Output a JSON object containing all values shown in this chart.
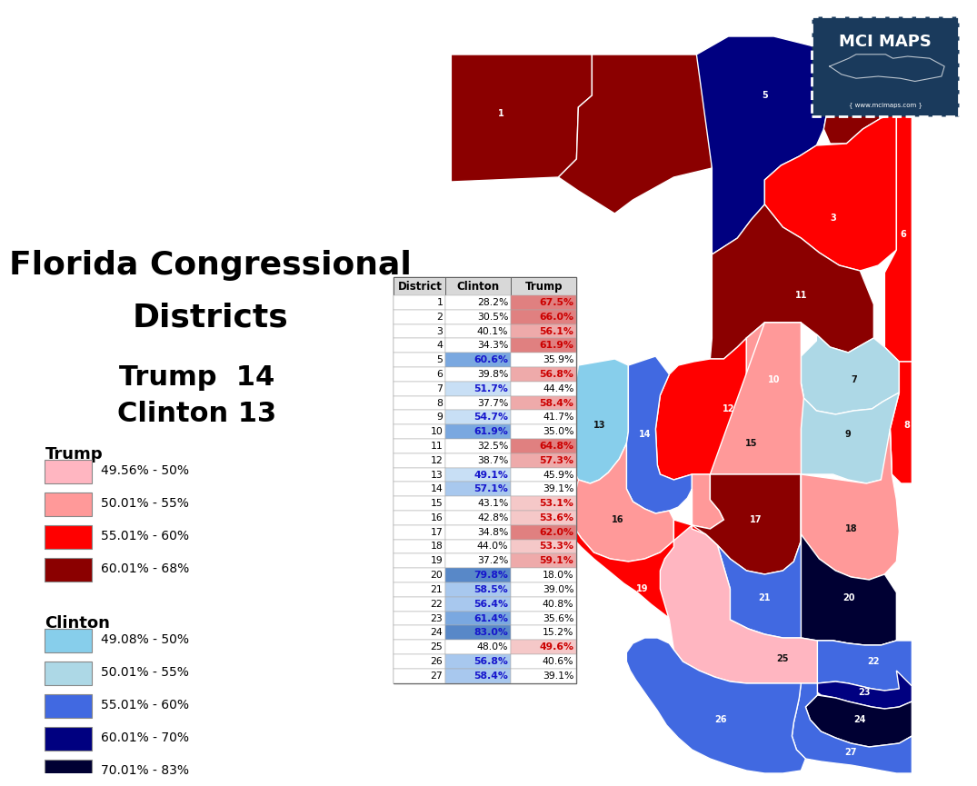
{
  "title_line1": "Florida Congressional",
  "title_line2": "Districts",
  "districts": [
    1,
    2,
    3,
    4,
    5,
    6,
    7,
    8,
    9,
    10,
    11,
    12,
    13,
    14,
    15,
    16,
    17,
    18,
    19,
    20,
    21,
    22,
    23,
    24,
    25,
    26,
    27
  ],
  "clinton": [
    28.2,
    30.5,
    40.1,
    34.3,
    60.6,
    39.8,
    51.7,
    37.7,
    54.7,
    61.9,
    32.5,
    38.7,
    49.1,
    57.1,
    43.1,
    42.8,
    34.8,
    44.0,
    37.2,
    79.8,
    58.5,
    56.4,
    61.4,
    83.0,
    48.0,
    56.8,
    58.4
  ],
  "trump": [
    67.5,
    66.0,
    56.1,
    61.9,
    35.9,
    56.8,
    44.4,
    58.4,
    41.7,
    35.0,
    64.8,
    57.3,
    45.9,
    39.1,
    53.1,
    53.6,
    62.0,
    53.3,
    59.1,
    18.0,
    39.0,
    40.8,
    35.6,
    15.2,
    49.6,
    40.6,
    39.1
  ],
  "legend_trump": [
    [
      "#FFB6C1",
      "49.56% - 50%"
    ],
    [
      "#FF9999",
      "50.01% - 55%"
    ],
    [
      "#FF0000",
      "55.01% - 60%"
    ],
    [
      "#8B0000",
      "60.01% - 68%"
    ]
  ],
  "legend_clinton": [
    [
      "#87CEEB",
      "49.08% - 50%"
    ],
    [
      "#ADD8E6",
      "50.01% - 55%"
    ],
    [
      "#4169E1",
      "55.01% - 60%"
    ],
    [
      "#000080",
      "60.01% - 70%"
    ],
    [
      "#000033",
      "70.01% - 83%"
    ]
  ],
  "mci_bg": "#1a3a5c",
  "mci_text": "MCI MAPS",
  "mci_url": "{ www.mcimaps.com }"
}
